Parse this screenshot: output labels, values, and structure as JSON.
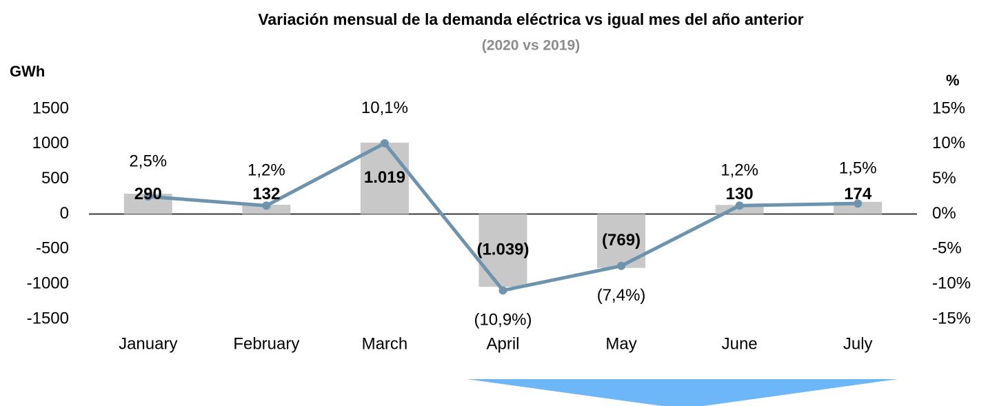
{
  "chart_data": {
    "type": "bar_line",
    "title": "Variación mensual de la demanda eléctrica vs igual mes del año anterior",
    "subtitle": "(2020 vs 2019)",
    "y_label": "GWh",
    "y2_label": "%",
    "categories": [
      "January",
      "February",
      "March",
      "April",
      "May",
      "June",
      "July"
    ],
    "series": [
      {
        "name": "GWh",
        "type": "bar",
        "color": "#c8c8c8",
        "values": [
          290,
          132,
          1019,
          -1039,
          -769,
          130,
          174
        ],
        "value_labels": [
          "290",
          "132",
          "1.019",
          "(1.039)",
          "(769)",
          "130",
          "174"
        ]
      },
      {
        "name": "%",
        "type": "line",
        "axis": "y2",
        "color": "#6e93ad",
        "values": [
          2.5,
          1.2,
          10.1,
          -10.9,
          -7.4,
          1.2,
          1.5
        ],
        "value_labels": [
          "2,5%",
          "1,2%",
          "10,1%",
          "(10,9%)",
          "(7,4%)",
          "1,2%",
          "1,5%"
        ]
      }
    ],
    "ylim": [
      -1500,
      1500
    ],
    "yticks": [
      -1500,
      -1000,
      -500,
      0,
      500,
      1000,
      1500
    ],
    "y2lim": [
      -15,
      15
    ],
    "y2ticks": [
      {
        "value": -15,
        "label": "-15%"
      },
      {
        "value": -10,
        "label": "-10%"
      },
      {
        "value": -5,
        "label": "-5%"
      },
      {
        "value": 0,
        "label": "0%"
      },
      {
        "value": 5,
        "label": "5%"
      },
      {
        "value": 10,
        "label": "10%"
      },
      {
        "value": 15,
        "label": "15%"
      }
    ]
  }
}
